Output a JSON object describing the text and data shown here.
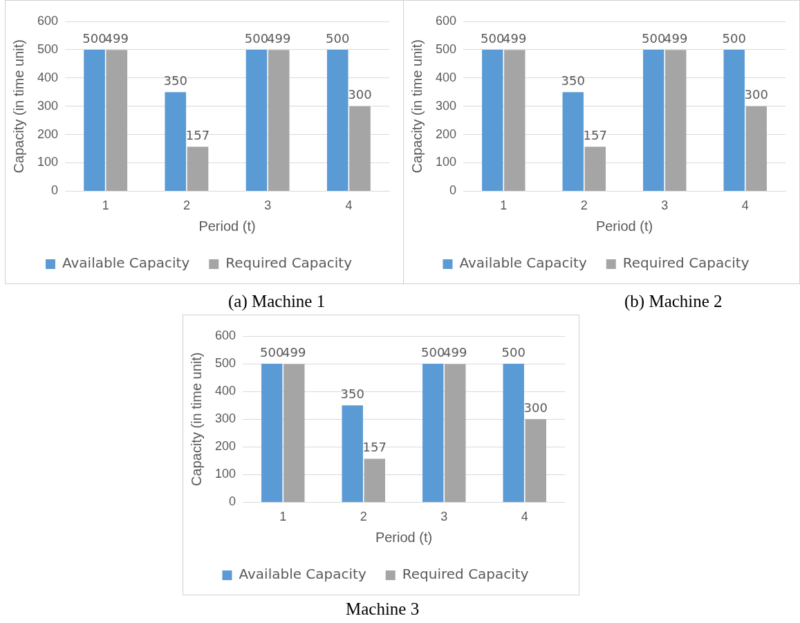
{
  "chart_data": [
    {
      "type": "bar",
      "categories": [
        "1",
        "2",
        "3",
        "4"
      ],
      "xlabel": "Period (t)",
      "ylabel": "Capacity (in time unit)",
      "ylim": [
        0,
        600
      ],
      "yticks": [
        0,
        100,
        200,
        300,
        400,
        500,
        600
      ],
      "grid": "y",
      "legend": "bottom",
      "data_labels": true,
      "annotations": [
        "(a) Machine 1"
      ],
      "series": [
        {
          "name": "Available Capacity",
          "color": "#5b9bd5",
          "values": [
            500,
            350,
            500,
            500
          ]
        },
        {
          "name": "Required Capacity",
          "color": "#a5a5a5",
          "values": [
            499,
            157,
            499,
            300
          ]
        }
      ]
    },
    {
      "type": "bar",
      "categories": [
        "1",
        "2",
        "3",
        "4"
      ],
      "xlabel": "Period (t)",
      "ylabel": "Capacity (in time unit)",
      "ylim": [
        0,
        600
      ],
      "yticks": [
        0,
        100,
        200,
        300,
        400,
        500,
        600
      ],
      "grid": "y",
      "legend": "bottom",
      "data_labels": true,
      "annotations": [
        "(b) Machine 2"
      ],
      "series": [
        {
          "name": "Available Capacity",
          "color": "#5b9bd5",
          "values": [
            500,
            350,
            500,
            500
          ]
        },
        {
          "name": "Required Capacity",
          "color": "#a5a5a5",
          "values": [
            499,
            157,
            499,
            300
          ]
        }
      ]
    },
    {
      "type": "bar",
      "categories": [
        "1",
        "2",
        "3",
        "4"
      ],
      "xlabel": "Period (t)",
      "ylabel": "Capacity (in time unit)",
      "ylim": [
        0,
        600
      ],
      "yticks": [
        0,
        100,
        200,
        300,
        400,
        500,
        600
      ],
      "grid": "y",
      "legend": "bottom",
      "data_labels": true,
      "annotations": [
        "Machine 3"
      ],
      "series": [
        {
          "name": "Available Capacity",
          "color": "#5b9bd5",
          "values": [
            500,
            350,
            500,
            500
          ]
        },
        {
          "name": "Required Capacity",
          "color": "#a5a5a5",
          "values": [
            499,
            157,
            499,
            300
          ]
        }
      ]
    }
  ]
}
